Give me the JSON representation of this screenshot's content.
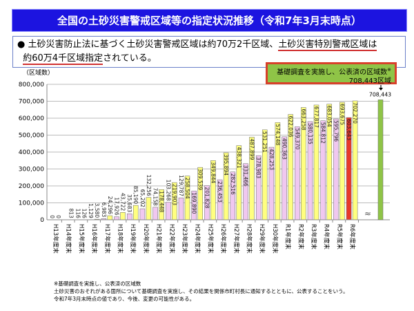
{
  "title": "全国の土砂災害警戒区域等の指定状況推移（令和7年3月末時点）",
  "summary": {
    "bullet": "●",
    "text1": "土砂災害防止法に基づく土砂災害警戒区域は約70万2千区域、",
    "text2": "土砂災害特別警戒区域は",
    "text3": "約60万4千区域指定",
    "text4": "されている。"
  },
  "callout": {
    "line1": "基礎調査を実施し、公表済の区域数",
    "mark": "※",
    "line2": "708,443区域"
  },
  "footnote": [
    "※基礎調査を実施し、公表済の区域数",
    "土砂災害のおそれがある箇所について基礎調査を実施し、その結果を関係市町村長に通知するとともに、公表することをいう。",
    "令和7年3月末時点の値であり、今後、変更の可能性がある。"
  ],
  "chart_data": {
    "type": "bar",
    "ylabel": "（区域数）",
    "ylim": [
      0,
      800000
    ],
    "yticks": [
      "0",
      "100,000",
      "200,000",
      "300,000",
      "400,000",
      "500,000",
      "600,000",
      "700,000",
      "800,000"
    ],
    "categories": [
      "H13年度末",
      "H14年度末",
      "H15年度末",
      "H16年度末",
      "H17年度末",
      "H18年度末",
      "H19年度末",
      "H20年度末",
      "H21年度末",
      "H22年度末",
      "H23年度末",
      "H24年度末",
      "H25年度末",
      "H26年度末",
      "H27年度末",
      "H28年度末",
      "H29年度末",
      "H30年度末",
      "R1年度末",
      "R2年度末",
      "R3年度末",
      "R4年度末",
      "R5年度末",
      "R6年度末"
    ],
    "series": [
      {
        "values": [
          0,
          null,
          116,
          1129,
          6983,
          17926,
          35683,
          65202,
          74158,
          103268,
          129787,
          169890,
          201828,
          236453,
          282516,
          331466,
          378983,
          428253,
          490363,
          549370,
          580135,
          584812,
          595796,
          603643
        ],
        "labels": [
          "0",
          "",
          "116",
          "1,129",
          "6,983",
          "17,926",
          "35,683",
          "65,202",
          "74,158",
          "103,268",
          "129,787",
          "169,890",
          "201,828",
          "236,453",
          "282,516",
          "331,466",
          "378,983",
          "428,253",
          "490,363",
          "549,370",
          "580,135",
          "584,812",
          "595,796",
          "603,643"
        ],
        "color": "#f0c8f0",
        "highlight_color": "#e8382a"
      },
      {
        "values": [
          0,
          813,
          126,
          3580,
          24296,
          43722,
          85190,
          132256,
          178448,
          219903,
          258504,
          309539,
          349844,
          395894,
          438321,
          487899,
          531251,
          574148,
          622036,
          663258,
          677817,
          683054,
          693675,
          702270
        ],
        "labels": [
          "0",
          "813",
          "126",
          "3,580",
          "24,296",
          "43,722",
          "85,190",
          "132,256",
          "178,448",
          "219,903",
          "258,504",
          "309,539",
          "349,844",
          "395,894",
          "438,321",
          "487,899",
          "531,251",
          "574,148",
          "622,036",
          "663,258",
          "677,817",
          "683,054",
          "693,675",
          "702,270"
        ],
        "color": "#ffff80"
      }
    ],
    "extra_bar": {
      "value": 708443,
      "label": "708,443",
      "color": "#8fc447"
    },
    "grid": true
  }
}
